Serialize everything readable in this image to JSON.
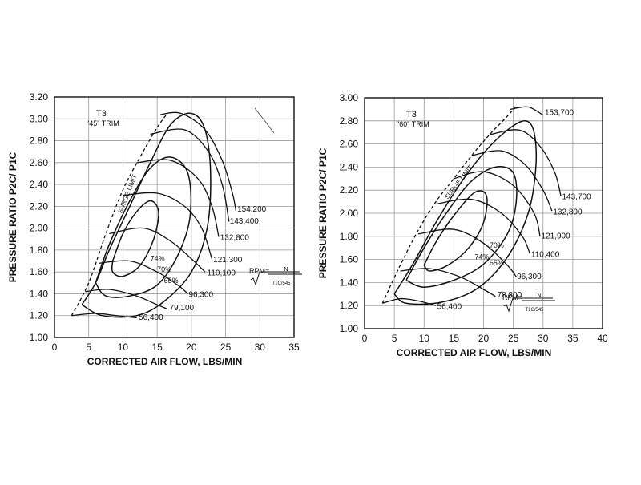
{
  "chart_data": [
    {
      "type": "line",
      "title": "T3",
      "subtitle": "\"45\" TRIM",
      "xlabel": "CORRECTED AIR FLOW, LBS/MIN",
      "ylabel": "PRESSURE RATIO P2C/ P1C",
      "xlim": [
        0,
        35
      ],
      "ylim": [
        1.0,
        3.2
      ],
      "x_ticks": [
        "0",
        "5",
        "10",
        "15",
        "20",
        "25",
        "30",
        "35"
      ],
      "y_ticks": [
        "1.00",
        "1.20",
        "1.40",
        "1.60",
        "1.80",
        "2.00",
        "2.20",
        "2.40",
        "2.60",
        "2.80",
        "3.00",
        "3.20"
      ],
      "grid": true,
      "surge_label": "SURGE LIMIT",
      "rpm_label": "RPM=",
      "rpm_numerator": "N",
      "rpm_denominator": "T1C/545",
      "surge_line": [
        [
          2.5,
          1.2
        ],
        [
          5,
          1.5
        ],
        [
          7.5,
          1.95
        ],
        [
          10,
          2.35
        ],
        [
          12.5,
          2.65
        ],
        [
          15,
          2.92
        ],
        [
          16.5,
          3.05
        ]
      ],
      "speed_lines": [
        {
          "name": "56,400",
          "label": "56,400",
          "points": [
            [
              2.5,
              1.2
            ],
            [
              6,
              1.22
            ],
            [
              9,
              1.2
            ],
            [
              12,
              1.18
            ]
          ],
          "label_at": [
            12.3,
            1.16
          ]
        },
        {
          "name": "79,100",
          "label": "79,100",
          "points": [
            [
              4.5,
              1.42
            ],
            [
              8,
              1.44
            ],
            [
              12,
              1.38
            ],
            [
              15,
              1.3
            ],
            [
              16.5,
              1.26
            ]
          ],
          "label_at": [
            16.8,
            1.25
          ]
        },
        {
          "name": "96,300",
          "label": "96,300",
          "points": [
            [
              6.5,
              1.68
            ],
            [
              11,
              1.7
            ],
            [
              15,
              1.6
            ],
            [
              18,
              1.48
            ],
            [
              19.5,
              1.4
            ]
          ],
          "label_at": [
            19.6,
            1.37
          ]
        },
        {
          "name": "110,100",
          "label": "110,100",
          "points": [
            [
              8,
              1.95
            ],
            [
              13,
              2.0
            ],
            [
              17,
              1.88
            ],
            [
              20,
              1.72
            ],
            [
              22,
              1.6
            ]
          ],
          "label_at": [
            22.3,
            1.57
          ]
        },
        {
          "name": "121,300",
          "label": "121,300",
          "points": [
            [
              10,
              2.3
            ],
            [
              15,
              2.32
            ],
            [
              19,
              2.2
            ],
            [
              21.5,
              2.0
            ],
            [
              23,
              1.72
            ]
          ],
          "label_at": [
            23.2,
            1.69
          ]
        },
        {
          "name": "132,800",
          "label": "132,800",
          "points": [
            [
              12,
              2.6
            ],
            [
              17,
              2.62
            ],
            [
              21,
              2.45
            ],
            [
              23,
              2.2
            ],
            [
              24,
              1.92
            ]
          ],
          "label_at": [
            24.2,
            1.89
          ]
        },
        {
          "name": "143,400",
          "label": "143,400",
          "points": [
            [
              14,
              2.86
            ],
            [
              19,
              2.9
            ],
            [
              22.5,
              2.7
            ],
            [
              24.5,
              2.4
            ],
            [
              25.5,
              2.06
            ]
          ],
          "label_at": [
            25.6,
            2.04
          ]
        },
        {
          "name": "154,200",
          "label": "154,200",
          "points": [
            [
              15.5,
              3.04
            ],
            [
              18.5,
              3.05
            ],
            [
              22,
              2.9
            ],
            [
              24.5,
              2.62
            ],
            [
              26,
              2.32
            ],
            [
              26.5,
              2.16
            ]
          ],
          "label_at": [
            26.7,
            2.15
          ]
        }
      ],
      "efficiency_islands": [
        {
          "name": "65%",
          "label": "65%",
          "points": [
            [
              4,
              1.3
            ],
            [
              6,
              1.5
            ],
            [
              8,
              1.8
            ],
            [
              11,
              2.2
            ],
            [
              14,
              2.6
            ],
            [
              17,
              2.95
            ],
            [
              20,
              3.05
            ],
            [
              22,
              2.9
            ],
            [
              22.8,
              2.5
            ],
            [
              22.3,
              2.0
            ],
            [
              20,
              1.6
            ],
            [
              16,
              1.33
            ],
            [
              12,
              1.2
            ],
            [
              7,
              1.2
            ],
            [
              4,
              1.3
            ]
          ],
          "label_at": [
            16,
            1.5
          ]
        },
        {
          "name": "70%",
          "label": "70%",
          "points": [
            [
              6,
              1.5
            ],
            [
              8,
              1.85
            ],
            [
              11,
              2.25
            ],
            [
              14,
              2.55
            ],
            [
              17,
              2.65
            ],
            [
              19.5,
              2.5
            ],
            [
              19.8,
              2.1
            ],
            [
              18,
              1.75
            ],
            [
              15,
              1.48
            ],
            [
              11,
              1.38
            ],
            [
              7.5,
              1.38
            ],
            [
              6,
              1.5
            ]
          ],
          "label_at": [
            15,
            1.6
          ]
        },
        {
          "name": "74%",
          "label": "74%",
          "points": [
            [
              8.5,
              1.7
            ],
            [
              10,
              1.95
            ],
            [
              12,
              2.15
            ],
            [
              14,
              2.25
            ],
            [
              15.2,
              2.15
            ],
            [
              14.5,
              1.9
            ],
            [
              12.5,
              1.66
            ],
            [
              10,
              1.56
            ],
            [
              8.5,
              1.6
            ],
            [
              8.5,
              1.7
            ]
          ],
          "label_at": [
            14,
            1.7
          ]
        }
      ]
    },
    {
      "type": "line",
      "title": "T3",
      "subtitle": "\"60\" TRIM",
      "xlabel": "CORRECTED AIR FLOW, LBS/MIN",
      "ylabel": "PRESSURE RATIO P2C/ P1C",
      "xlim": [
        0,
        40
      ],
      "ylim": [
        1.0,
        3.0
      ],
      "x_ticks": [
        "0",
        "5",
        "10",
        "15",
        "20",
        "25",
        "30",
        "35",
        "40"
      ],
      "y_ticks": [
        "1.00",
        "1.20",
        "1.40",
        "1.60",
        "1.80",
        "2.00",
        "2.20",
        "2.40",
        "2.60",
        "2.80",
        "3.00"
      ],
      "grid": true,
      "surge_label": "SURGE LIMIT",
      "rpm_label": "RPM=",
      "rpm_numerator": "N",
      "rpm_denominator": "T1C/545",
      "surge_line": [
        [
          3,
          1.22
        ],
        [
          6,
          1.55
        ],
        [
          9,
          1.85
        ],
        [
          12,
          2.1
        ],
        [
          15,
          2.3
        ],
        [
          18,
          2.5
        ],
        [
          21,
          2.68
        ],
        [
          24,
          2.84
        ],
        [
          25.5,
          2.93
        ]
      ],
      "speed_lines": [
        {
          "name": "56,400",
          "label": "56,400",
          "points": [
            [
              3,
              1.22
            ],
            [
              6,
              1.26
            ],
            [
              9,
              1.24
            ],
            [
              12,
              1.2
            ]
          ],
          "label_at": [
            12.2,
            1.17
          ]
        },
        {
          "name": "78,800",
          "label": "78,800",
          "points": [
            [
              6,
              1.5
            ],
            [
              11,
              1.52
            ],
            [
              16,
              1.45
            ],
            [
              20,
              1.34
            ],
            [
              22,
              1.28
            ]
          ],
          "label_at": [
            22.3,
            1.27
          ]
        },
        {
          "name": "96,300",
          "label": "96,300",
          "points": [
            [
              9,
              1.82
            ],
            [
              15,
              1.86
            ],
            [
              20,
              1.74
            ],
            [
              24,
              1.55
            ],
            [
              25.5,
              1.45
            ]
          ],
          "label_at": [
            25.6,
            1.43
          ]
        },
        {
          "name": "110,400",
          "label": "110,400",
          "points": [
            [
              12,
              2.08
            ],
            [
              18,
              2.12
            ],
            [
              23,
              2.0
            ],
            [
              26.5,
              1.8
            ],
            [
              27.8,
              1.65
            ]
          ],
          "label_at": [
            28,
            1.62
          ]
        },
        {
          "name": "121,900",
          "label": "121,900",
          "points": [
            [
              15,
              2.3
            ],
            [
              20,
              2.36
            ],
            [
              25,
              2.24
            ],
            [
              28.5,
              2.0
            ],
            [
              29.5,
              1.8
            ]
          ],
          "label_at": [
            29.7,
            1.78
          ]
        },
        {
          "name": "132,800",
          "label": "132,800",
          "points": [
            [
              18,
              2.5
            ],
            [
              23,
              2.54
            ],
            [
              27,
              2.42
            ],
            [
              30,
              2.2
            ],
            [
              31.5,
              2.02
            ]
          ],
          "label_at": [
            31.7,
            1.99
          ]
        },
        {
          "name": "143,700",
          "label": "143,700",
          "points": [
            [
              21,
              2.68
            ],
            [
              26,
              2.72
            ],
            [
              29.5,
              2.58
            ],
            [
              32,
              2.35
            ],
            [
              33,
              2.15
            ]
          ],
          "label_at": [
            33.2,
            2.12
          ]
        },
        {
          "name": "153,700",
          "label": "153,700",
          "points": [
            [
              24.5,
              2.9
            ],
            [
              27.5,
              2.92
            ],
            [
              30,
              2.85
            ]
          ],
          "label_at": [
            30.3,
            2.85
          ]
        }
      ],
      "efficiency_islands": [
        {
          "name": "65%",
          "label": "65%",
          "points": [
            [
              5,
              1.3
            ],
            [
              8,
              1.55
            ],
            [
              12,
              1.92
            ],
            [
              16,
              2.25
            ],
            [
              20,
              2.52
            ],
            [
              24,
              2.72
            ],
            [
              27,
              2.8
            ],
            [
              28.5,
              2.7
            ],
            [
              28.8,
              2.4
            ],
            [
              27.5,
              2.0
            ],
            [
              24,
              1.62
            ],
            [
              19,
              1.35
            ],
            [
              13,
              1.23
            ],
            [
              7,
              1.22
            ],
            [
              5,
              1.3
            ]
          ],
          "label_at": [
            21,
            1.55
          ]
        },
        {
          "name": "70%",
          "label": "70%",
          "points": [
            [
              7,
              1.42
            ],
            [
              10,
              1.7
            ],
            [
              14,
              2.02
            ],
            [
              18,
              2.28
            ],
            [
              22,
              2.4
            ],
            [
              25,
              2.35
            ],
            [
              25.5,
              2.1
            ],
            [
              24,
              1.82
            ],
            [
              20,
              1.56
            ],
            [
              15,
              1.42
            ],
            [
              10,
              1.36
            ],
            [
              7,
              1.42
            ]
          ],
          "label_at": [
            21,
            1.7
          ]
        },
        {
          "name": "74%",
          "label": "74%",
          "points": [
            [
              10,
              1.55
            ],
            [
              12,
              1.75
            ],
            [
              15,
              1.98
            ],
            [
              18.5,
              2.18
            ],
            [
              20.5,
              2.15
            ],
            [
              20,
              1.92
            ],
            [
              17.5,
              1.7
            ],
            [
              14,
              1.55
            ],
            [
              11,
              1.5
            ],
            [
              10,
              1.55
            ]
          ],
          "label_at": [
            18.5,
            1.6
          ]
        }
      ]
    }
  ]
}
